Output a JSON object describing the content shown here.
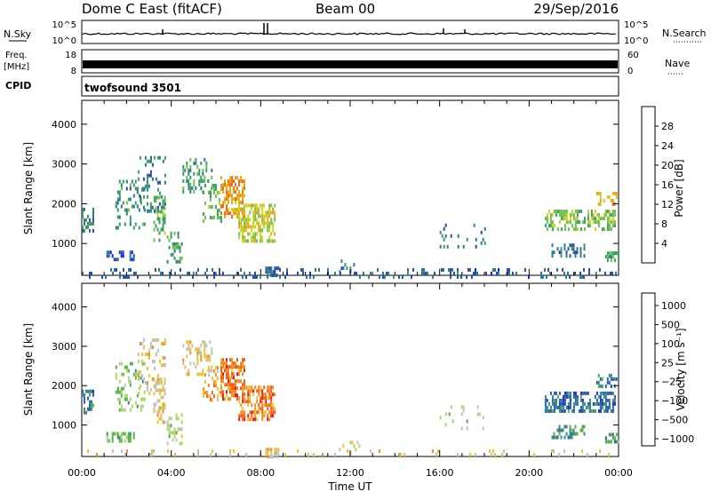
{
  "header": {
    "title": "Dome C East (fitACF)",
    "beam": "Beam 00",
    "date": "29/Sep/2016"
  },
  "strips": {
    "nsky": {
      "label": "N.Sky",
      "ticks": [
        "10^5",
        "10^0"
      ]
    },
    "nsearch": {
      "label": "N.Search",
      "ticks": [
        "10^5",
        "10^0"
      ]
    },
    "freq": {
      "label_line1": "Freq.",
      "label_line2": "[MHz]",
      "ticks": [
        "18",
        "8"
      ]
    },
    "nave": {
      "label": "Nave",
      "ticks": [
        "60",
        "0"
      ]
    },
    "cpid": {
      "label": "CPID",
      "value": "twofsound 3501"
    }
  },
  "colors": {
    "power_scale": [
      "#1a1aff",
      "#2a4fa0",
      "#2f7a8a",
      "#3a9a6a",
      "#6ac24a",
      "#c8d020",
      "#f0a020",
      "#f06a18",
      "#e82018"
    ],
    "velocity_scale": [
      "#2030d0",
      "#2a60b0",
      "#3a8a8a",
      "#58b04a",
      "#a8d860",
      "#c0c0c0",
      "#f0c030",
      "#f09020",
      "#f06020",
      "#e02020"
    ]
  },
  "chart_data": [
    {
      "type": "heatmap",
      "name": "power",
      "ylabel": "Slant Range [km]",
      "yticks": [
        1000,
        2000,
        3000,
        4000
      ],
      "ylim": [
        200,
        4600
      ],
      "xlim": [
        0,
        24
      ],
      "colorbar": {
        "label": "Power [dB]",
        "ticks": [
          "4",
          "8",
          "12",
          "16",
          "20",
          "24",
          "28"
        ]
      },
      "regions": [
        {
          "t": [
            0.0,
            0.5
          ],
          "r": [
            1350,
            1900
          ],
          "v": 10,
          "d": 0.5
        },
        {
          "t": [
            1.1,
            2.3
          ],
          "r": [
            620,
            820
          ],
          "v": 6,
          "d": 0.55
        },
        {
          "t": [
            1.5,
            2.8
          ],
          "r": [
            1400,
            2600
          ],
          "v": 11,
          "d": 0.25
        },
        {
          "t": [
            2.5,
            3.7
          ],
          "r": [
            1800,
            3200
          ],
          "v": 10,
          "d": 0.2
        },
        {
          "t": [
            3.2,
            3.7
          ],
          "r": [
            1100,
            2200
          ],
          "v": 15,
          "d": 0.45
        },
        {
          "t": [
            3.8,
            4.5
          ],
          "r": [
            500,
            1300
          ],
          "v": 13,
          "d": 0.35
        },
        {
          "t": [
            4.5,
            5.8
          ],
          "r": [
            2300,
            3150
          ],
          "v": 12,
          "d": 0.3
        },
        {
          "t": [
            5.4,
            6.2
          ],
          "r": [
            1600,
            2500
          ],
          "v": 15,
          "d": 0.3
        },
        {
          "t": [
            6.2,
            7.3
          ],
          "r": [
            1700,
            2700
          ],
          "v": 24,
          "d": 0.6
        },
        {
          "t": [
            7.0,
            8.6
          ],
          "r": [
            1100,
            2000
          ],
          "v": 19,
          "d": 0.6
        },
        {
          "t": [
            8.2,
            8.8
          ],
          "r": [
            200,
            420
          ],
          "v": 7,
          "d": 0.7
        },
        {
          "t": [
            11.5,
            12.4
          ],
          "r": [
            250,
            600
          ],
          "v": 10,
          "d": 0.15
        },
        {
          "t": [
            16.0,
            18.0
          ],
          "r": [
            900,
            1500
          ],
          "v": 8,
          "d": 0.12
        },
        {
          "t": [
            20.7,
            23.8
          ],
          "r": [
            1350,
            1850
          ],
          "v": 16,
          "d": 0.55
        },
        {
          "t": [
            21.0,
            22.5
          ],
          "r": [
            700,
            1000
          ],
          "v": 8,
          "d": 0.45
        },
        {
          "t": [
            23.0,
            23.9
          ],
          "r": [
            2000,
            2300
          ],
          "v": 22,
          "d": 0.35
        },
        {
          "t": [
            23.4,
            24.0
          ],
          "r": [
            600,
            800
          ],
          "v": 14,
          "d": 0.6
        },
        {
          "t": [
            0.0,
            24.0
          ],
          "r": [
            200,
            380
          ],
          "v": 7,
          "d": 0.18
        }
      ]
    },
    {
      "type": "heatmap",
      "name": "velocity",
      "ylabel": "Slant Range [km]",
      "yticks": [
        1000,
        2000,
        3000,
        4000
      ],
      "ylim": [
        200,
        4600
      ],
      "xlim": [
        0,
        24
      ],
      "xticks": [
        "00:00",
        "04:00",
        "08:00",
        "12:00",
        "16:00",
        "20:00",
        "00:00"
      ],
      "xlabel": "Time UT",
      "colorbar": {
        "label": "Velocity [m s⁻¹]",
        "ticks": [
          "1000",
          "500",
          "100",
          "25",
          "-25",
          "-100",
          "-500",
          "-1000"
        ]
      },
      "regions": [
        {
          "t": [
            0.0,
            0.5
          ],
          "r": [
            1350,
            1900
          ],
          "v": 2,
          "d": 0.5
        },
        {
          "t": [
            1.1,
            2.3
          ],
          "r": [
            620,
            820
          ],
          "v": 4,
          "d": 0.55
        },
        {
          "t": [
            1.5,
            2.8
          ],
          "r": [
            1400,
            2600
          ],
          "v": 4,
          "d": 0.25
        },
        {
          "t": [
            2.5,
            3.7
          ],
          "r": [
            1800,
            3200
          ],
          "v": 6,
          "d": 0.2
        },
        {
          "t": [
            3.2,
            3.7
          ],
          "r": [
            1100,
            2200
          ],
          "v": 6,
          "d": 0.45
        },
        {
          "t": [
            3.8,
            4.5
          ],
          "r": [
            500,
            1300
          ],
          "v": 5,
          "d": 0.35
        },
        {
          "t": [
            4.5,
            5.8
          ],
          "r": [
            2300,
            3150
          ],
          "v": 6,
          "d": 0.3
        },
        {
          "t": [
            5.4,
            6.2
          ],
          "r": [
            1600,
            2500
          ],
          "v": 7,
          "d": 0.3
        },
        {
          "t": [
            6.2,
            7.3
          ],
          "r": [
            1700,
            2700
          ],
          "v": 8,
          "d": 0.6
        },
        {
          "t": [
            7.0,
            8.6
          ],
          "r": [
            1100,
            2000
          ],
          "v": 8,
          "d": 0.6
        },
        {
          "t": [
            8.2,
            8.8
          ],
          "r": [
            200,
            420
          ],
          "v": 6,
          "d": 0.7
        },
        {
          "t": [
            11.5,
            12.4
          ],
          "r": [
            250,
            600
          ],
          "v": 5,
          "d": 0.15
        },
        {
          "t": [
            16.0,
            18.0
          ],
          "r": [
            900,
            1500
          ],
          "v": 5,
          "d": 0.12
        },
        {
          "t": [
            20.7,
            23.8
          ],
          "r": [
            1350,
            1850
          ],
          "v": 2,
          "d": 0.55
        },
        {
          "t": [
            21.0,
            22.5
          ],
          "r": [
            700,
            1000
          ],
          "v": 3,
          "d": 0.45
        },
        {
          "t": [
            23.0,
            23.9
          ],
          "r": [
            2000,
            2300
          ],
          "v": 2,
          "d": 0.35
        },
        {
          "t": [
            23.4,
            24.0
          ],
          "r": [
            600,
            800
          ],
          "v": 3,
          "d": 0.6
        },
        {
          "t": [
            0.0,
            24.0
          ],
          "r": [
            200,
            380
          ],
          "v": 6,
          "d": 0.12
        }
      ]
    }
  ]
}
